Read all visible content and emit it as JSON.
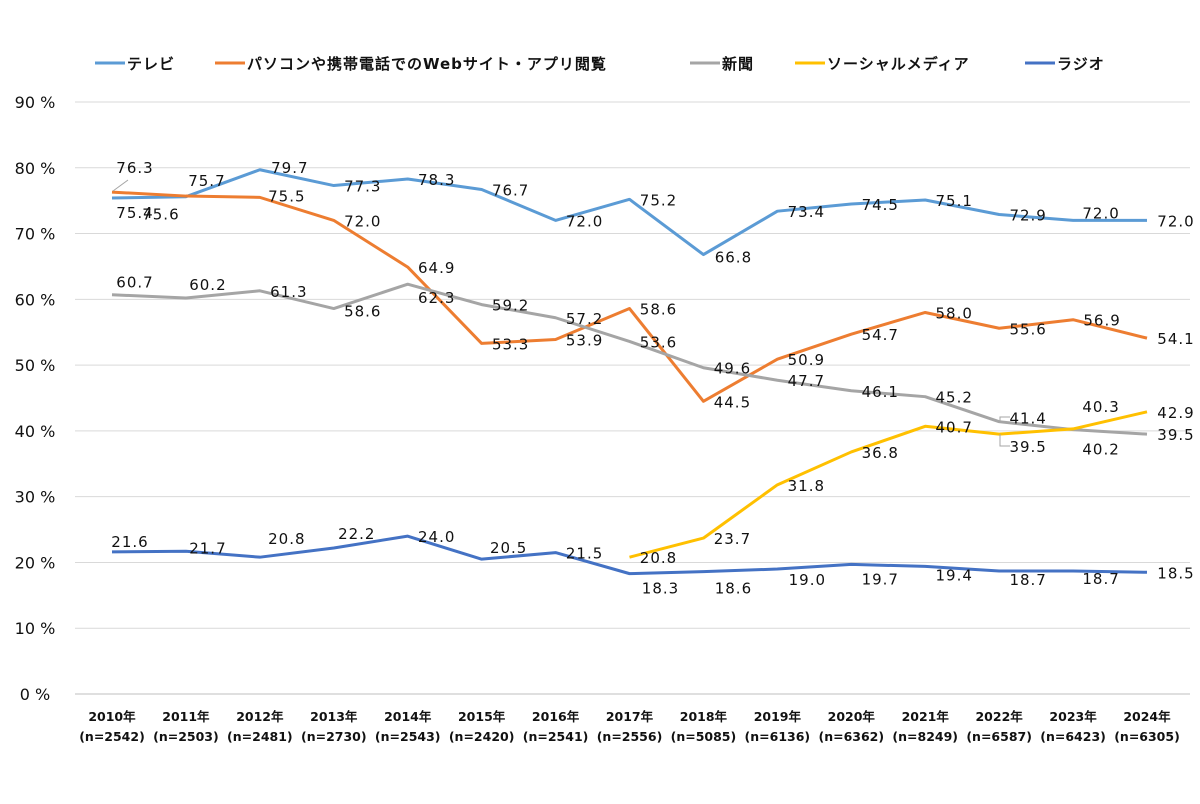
{
  "chart_data": {
    "type": "line",
    "title": "",
    "xlabel": "",
    "ylabel": "",
    "ylim": [
      0,
      90
    ],
    "y_ticks": [
      "0 %",
      "10 %",
      "20 %",
      "30 %",
      "40 %",
      "50 %",
      "60 %",
      "70 %",
      "80 %",
      "90 %"
    ],
    "grid": true,
    "legend_position": "top",
    "categories": [
      "2010年",
      "2011年",
      "2012年",
      "2013年",
      "2014年",
      "2015年",
      "2016年",
      "2017年",
      "2018年",
      "2019年",
      "2020年",
      "2021年",
      "2022年",
      "2023年",
      "2024年"
    ],
    "category_n": [
      "(n=2542)",
      "(n=2503)",
      "(n=2481)",
      "(n=2730)",
      "(n=2543)",
      "(n=2420)",
      "(n=2541)",
      "(n=2556)",
      "(n=5085)",
      "(n=6136)",
      "(n=6362)",
      "(n=8249)",
      "(n=6587)",
      "(n=6423)",
      "(n=6305)"
    ],
    "series": [
      {
        "name": "テレビ",
        "color": "#5B9BD5",
        "values": [
          75.4,
          75.6,
          79.7,
          77.3,
          78.3,
          76.7,
          72.0,
          75.2,
          66.8,
          73.4,
          74.5,
          75.1,
          72.9,
          72.0,
          72.0
        ]
      },
      {
        "name": "パソコンや携帯電話でのWebサイト・アプリ閲覧",
        "color": "#ED7D31",
        "values": [
          76.3,
          75.7,
          75.5,
          72.0,
          64.9,
          53.3,
          53.9,
          58.6,
          44.5,
          50.9,
          54.7,
          58.0,
          55.6,
          56.9,
          54.1
        ]
      },
      {
        "name": "新聞",
        "color": "#A5A5A5",
        "values": [
          60.7,
          60.2,
          61.3,
          58.6,
          62.3,
          59.2,
          57.2,
          53.6,
          49.6,
          47.7,
          46.1,
          45.2,
          41.4,
          40.2,
          39.5
        ]
      },
      {
        "name": "ソーシャルメディア",
        "color": "#FFC000",
        "values": [
          null,
          null,
          null,
          null,
          null,
          null,
          null,
          20.8,
          23.7,
          31.8,
          36.8,
          40.7,
          39.5,
          40.3,
          42.9
        ]
      },
      {
        "name": "ラジオ",
        "color": "#4472C4",
        "values": [
          21.6,
          21.7,
          20.8,
          22.2,
          24.0,
          20.5,
          21.5,
          18.3,
          18.6,
          19.0,
          19.7,
          19.4,
          18.7,
          18.7,
          18.5
        ]
      }
    ]
  }
}
